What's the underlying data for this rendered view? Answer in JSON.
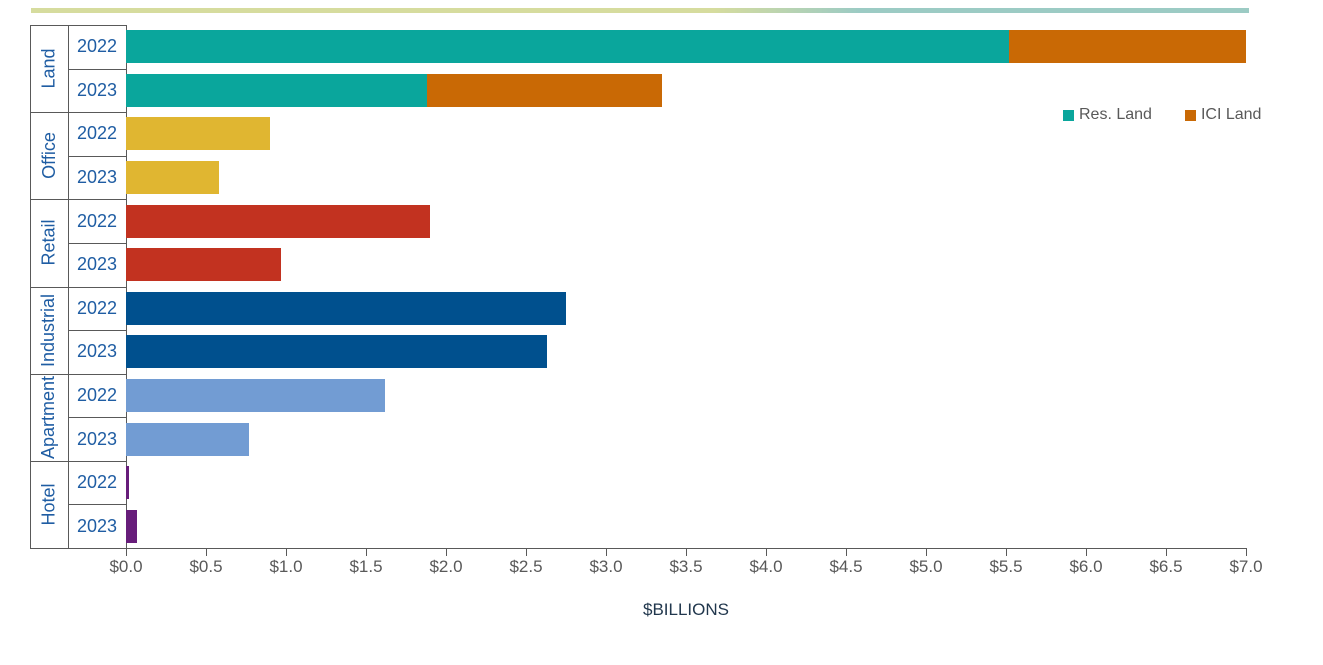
{
  "chart_data": {
    "type": "bar",
    "orientation": "horizontal",
    "title": "",
    "xlabel": "$BILLIONS",
    "unit": "billions of dollars",
    "xlim": [
      0,
      7
    ],
    "x_tick_step": 0.5,
    "x_tick_labels": [
      "$0.0",
      "$0.5",
      "$1.0",
      "$1.5",
      "$2.0",
      "$2.5",
      "$3.0",
      "$3.5",
      "$4.0",
      "$4.5",
      "$5.0",
      "$5.5",
      "$6.0",
      "$6.5",
      "$7.0"
    ],
    "grid": false,
    "legend": {
      "position": "upper-right",
      "items": [
        {
          "label": "Res. Land",
          "color": "#0AA69C"
        },
        {
          "label": "ICI Land",
          "color": "#C96905"
        }
      ]
    },
    "categories": [
      "Land",
      "Office",
      "Retail",
      "Industrial",
      "Apartment",
      "Hotel"
    ],
    "rows": [
      {
        "category": "Land",
        "year": "2022",
        "segments": [
          {
            "series": "Res. Land",
            "value": 5.52,
            "color": "#0AA69C"
          },
          {
            "series": "ICI Land",
            "value": 1.48,
            "color": "#C96905"
          }
        ]
      },
      {
        "category": "Land",
        "year": "2023",
        "segments": [
          {
            "series": "Res. Land",
            "value": 1.88,
            "color": "#0AA69C"
          },
          {
            "series": "ICI Land",
            "value": 1.47,
            "color": "#C96905"
          }
        ]
      },
      {
        "category": "Office",
        "year": "2022",
        "segments": [
          {
            "series": "Office",
            "value": 0.9,
            "color": "#E0B631"
          }
        ]
      },
      {
        "category": "Office",
        "year": "2023",
        "segments": [
          {
            "series": "Office",
            "value": 0.58,
            "color": "#E0B631"
          }
        ]
      },
      {
        "category": "Retail",
        "year": "2022",
        "segments": [
          {
            "series": "Retail",
            "value": 1.9,
            "color": "#C23220"
          }
        ]
      },
      {
        "category": "Retail",
        "year": "2023",
        "segments": [
          {
            "series": "Retail",
            "value": 0.97,
            "color": "#C23220"
          }
        ]
      },
      {
        "category": "Industrial",
        "year": "2022",
        "segments": [
          {
            "series": "Industrial",
            "value": 2.75,
            "color": "#00508E"
          }
        ]
      },
      {
        "category": "Industrial",
        "year": "2023",
        "segments": [
          {
            "series": "Industrial",
            "value": 2.63,
            "color": "#00508E"
          }
        ]
      },
      {
        "category": "Apartment",
        "year": "2022",
        "segments": [
          {
            "series": "Apartment",
            "value": 1.62,
            "color": "#729CD3"
          }
        ]
      },
      {
        "category": "Apartment",
        "year": "2023",
        "segments": [
          {
            "series": "Apartment",
            "value": 0.77,
            "color": "#729CD3"
          }
        ]
      },
      {
        "category": "Hotel",
        "year": "2022",
        "segments": [
          {
            "series": "Hotel",
            "value": 0.02,
            "color": "#671D7A"
          }
        ]
      },
      {
        "category": "Hotel",
        "year": "2023",
        "segments": [
          {
            "series": "Hotel",
            "value": 0.07,
            "color": "#671D7A"
          }
        ]
      }
    ],
    "category_colors": {
      "Land_Res": "#0AA69C",
      "Land_ICI": "#C96905",
      "Office": "#E0B631",
      "Retail": "#C23220",
      "Industrial": "#00508E",
      "Apartment": "#729CD3",
      "Hotel": "#671D7A"
    }
  },
  "decor": {
    "top_line_left_color": "#D6DC9E",
    "top_line_right_color": "#9CCBC4",
    "axis_line_color": "#595959",
    "label_blue": "#1F5DA3",
    "axis_title_color": "#21374D"
  }
}
